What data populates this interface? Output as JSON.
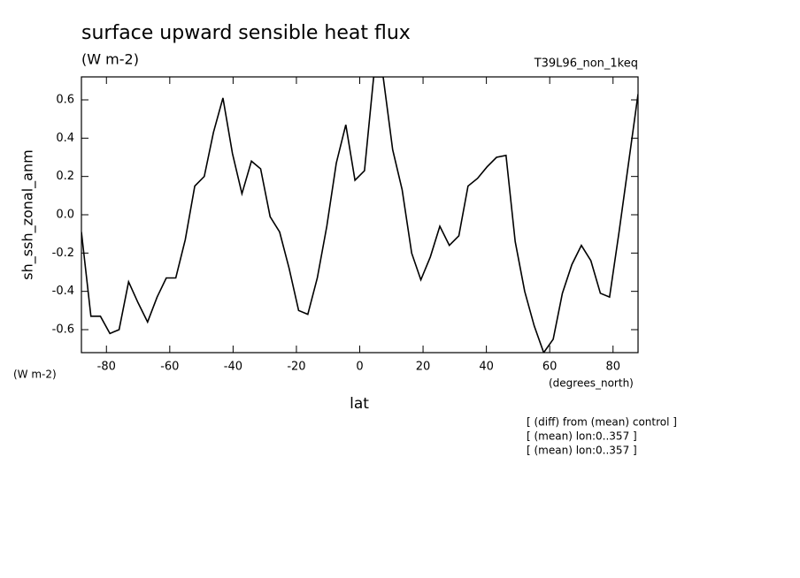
{
  "chart_data": {
    "type": "line",
    "title": "surface upward sensible heat flux",
    "subtitle": "(W m-2)",
    "run_label": "T39L96_non_1keq",
    "ylabel": "sh_ssh_zonal_anm",
    "y_units": "(W m-2)",
    "x_units": "(degrees_north)",
    "xlabel": "lat",
    "notes": [
      "[ (diff) from (mean) control ]",
      "[ (mean) lon:0..357 ]",
      "[ (mean) lon:0..357 ]"
    ],
    "x": [
      -87.9,
      -84.9,
      -81.9,
      -78.9,
      -76.0,
      -73.0,
      -70.0,
      -67.0,
      -64.0,
      -61.1,
      -58.1,
      -55.1,
      -52.1,
      -49.1,
      -46.2,
      -43.2,
      -40.2,
      -37.2,
      -34.2,
      -31.3,
      -28.3,
      -25.3,
      -22.3,
      -19.3,
      -16.4,
      -13.4,
      -10.4,
      -7.4,
      -4.4,
      -1.5,
      1.5,
      4.4,
      7.4,
      10.4,
      13.4,
      16.4,
      19.3,
      22.3,
      25.3,
      28.3,
      31.3,
      34.2,
      37.2,
      40.2,
      43.2,
      46.2,
      49.1,
      52.1,
      55.1,
      58.1,
      61.1,
      64.0,
      67.0,
      70.0,
      73.0,
      76.0,
      78.9,
      81.9,
      84.9,
      87.9
    ],
    "series": [
      {
        "color": "#000000",
        "values": [
          -0.09,
          -0.53,
          -0.53,
          -0.62,
          -0.6,
          -0.35,
          -0.46,
          -0.56,
          -0.43,
          -0.33,
          -0.33,
          -0.13,
          0.15,
          0.2,
          0.43,
          0.61,
          0.32,
          0.11,
          0.28,
          0.24,
          -0.01,
          -0.09,
          -0.28,
          -0.5,
          -0.52,
          -0.33,
          -0.06,
          0.27,
          0.47,
          0.18,
          0.23,
          0.72,
          0.72,
          0.34,
          0.13,
          -0.2,
          -0.34,
          -0.22,
          -0.06,
          -0.16,
          -0.11,
          0.15,
          0.19,
          0.25,
          0.3,
          0.31,
          -0.14,
          -0.4,
          -0.58,
          -0.72,
          -0.65,
          -0.41,
          -0.26,
          -0.16,
          -0.24,
          -0.41,
          -0.43,
          -0.09,
          0.27,
          0.63
        ]
      }
    ],
    "xlim": [
      -87.9,
      87.9
    ],
    "ylim": [
      -0.72,
      0.72
    ],
    "xticks": [
      -80,
      -60,
      -40,
      -20,
      0,
      20,
      40,
      60,
      80
    ],
    "yticks": [
      -0.6,
      -0.4,
      -0.2,
      {
        "value": 0,
        "label": "0.0"
      },
      0.2,
      0.4,
      0.6
    ]
  }
}
